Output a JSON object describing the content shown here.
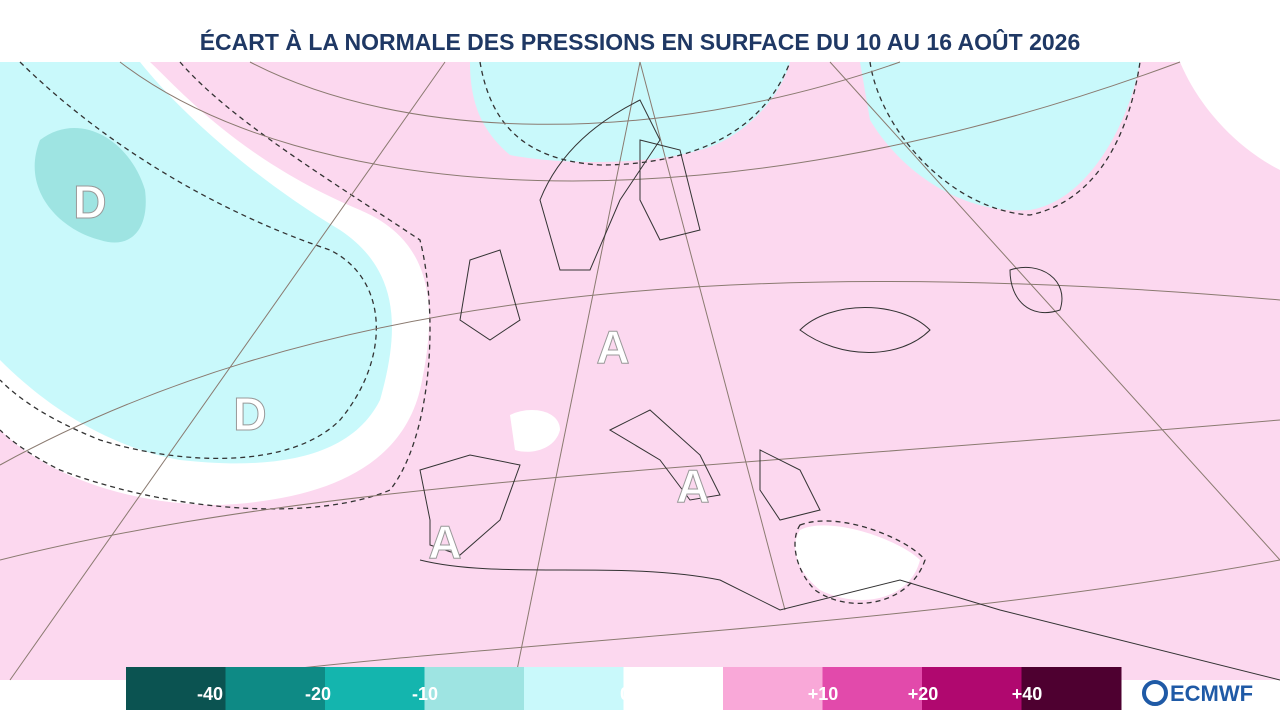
{
  "title": "ÉCART À LA NORMALE DES PRESSIONS EN SURFACE DU 10 AU 16 AOÛT 2026",
  "pressure_centers": [
    "D",
    "D",
    "A",
    "A",
    "A"
  ],
  "legend": {
    "colors": [
      "#0b5351",
      "#0e8a85",
      "#14b5ae",
      "#9ee4e2",
      "#c9f9fb",
      "#ffffff",
      "#f9a8d8",
      "#e24aab",
      "#b0086f",
      "#4e0030"
    ],
    "labels": [
      "-40",
      "-20",
      "-10",
      "0",
      "+10",
      "+20",
      "+40"
    ]
  },
  "logo": "ECMWF"
}
